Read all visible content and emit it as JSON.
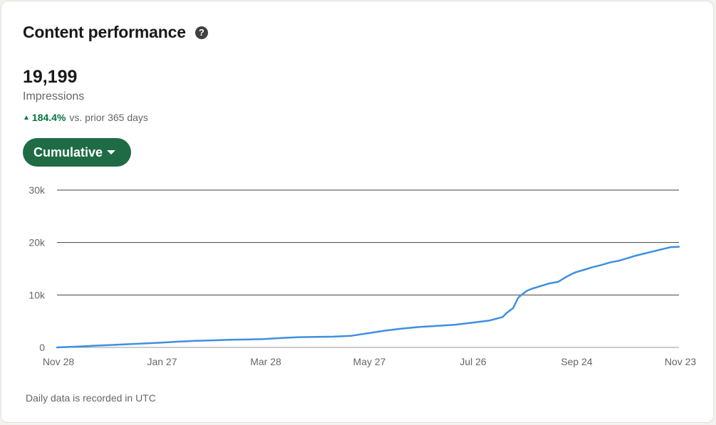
{
  "header": {
    "title": "Content performance",
    "help_icon": "question-circle-icon"
  },
  "metric": {
    "value": "19,199",
    "label": "Impressions",
    "trend_direction": "up",
    "trend_percent": "184.4%",
    "trend_text": "vs. prior 365 days",
    "trend_color": "#057642"
  },
  "dropdown": {
    "label": "Cumulative",
    "color": "#1e6b45"
  },
  "footnote": "Daily data is recorded in UTC",
  "chart_data": {
    "type": "line",
    "title": "",
    "xlabel": "",
    "ylabel": "",
    "ylim": [
      0,
      30000
    ],
    "yticks": [
      0,
      10000,
      20000,
      30000
    ],
    "ytick_labels": [
      "0",
      "10k",
      "20k",
      "30k"
    ],
    "xtick_labels": [
      "Nov 28",
      "Jan 27",
      "Mar 28",
      "May 27",
      "Jul 26",
      "Sep 24",
      "Nov 23"
    ],
    "x_range_days": [
      0,
      360
    ],
    "grid": true,
    "legend": "none",
    "series": [
      {
        "color": "#3f8fe0",
        "x": [
          0,
          8,
          15,
          20,
          30,
          40,
          50,
          60,
          70,
          80,
          90,
          100,
          110,
          120,
          130,
          140,
          150,
          160,
          170,
          180,
          190,
          200,
          210,
          220,
          230,
          240,
          250,
          258,
          260,
          264,
          267,
          270,
          272,
          275,
          280,
          285,
          290,
          295,
          298,
          300,
          305,
          310,
          315,
          320,
          325,
          330,
          335,
          340,
          345,
          350,
          355,
          360
        ],
        "y": [
          0,
          100,
          200,
          300,
          450,
          600,
          750,
          900,
          1100,
          1250,
          1350,
          1450,
          1500,
          1600,
          1800,
          1950,
          2000,
          2050,
          2200,
          2700,
          3200,
          3600,
          3900,
          4100,
          4300,
          4700,
          5100,
          5800,
          6500,
          7500,
          9500,
          10300,
          10800,
          11200,
          11700,
          12200,
          12500,
          13500,
          14000,
          14300,
          14800,
          15300,
          15700,
          16200,
          16500,
          17000,
          17500,
          17900,
          18300,
          18700,
          19100,
          19199
        ]
      }
    ]
  }
}
